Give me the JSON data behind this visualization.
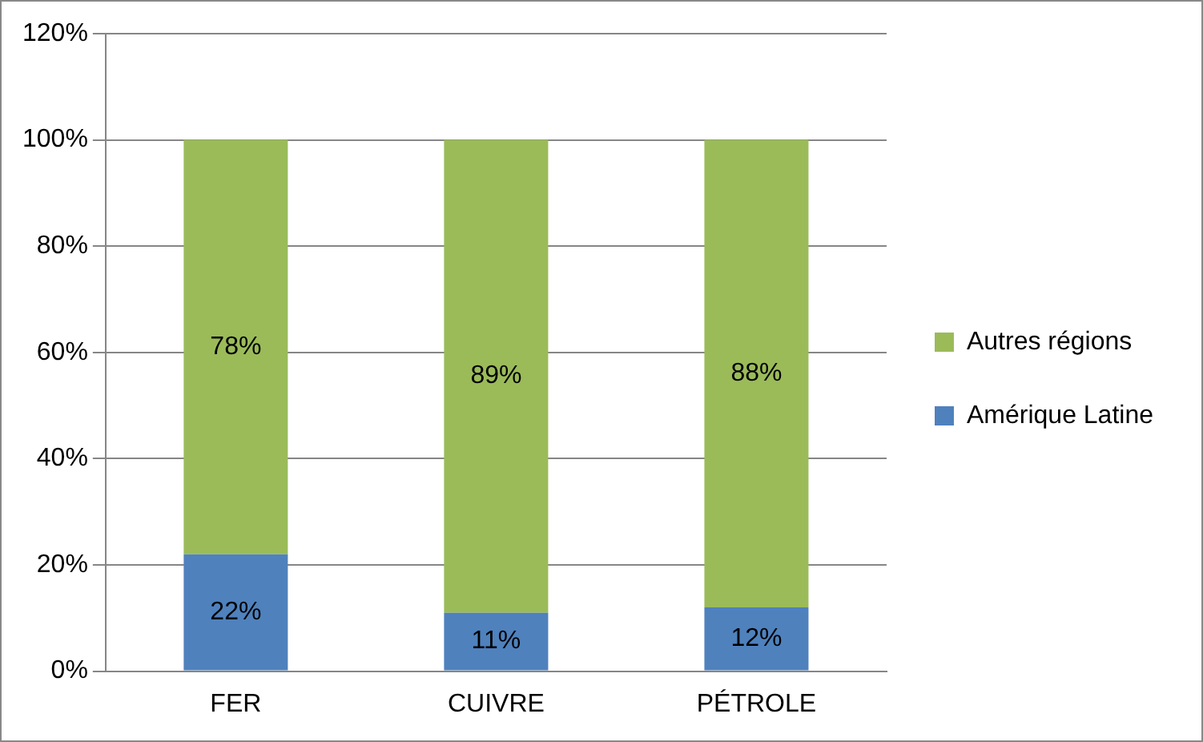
{
  "chart_data": {
    "type": "bar",
    "stacked": true,
    "categories": [
      "FER",
      "CUIVRE",
      "PÉTROLE"
    ],
    "series": [
      {
        "name": "Amérique Latine",
        "color": "#4f81bd",
        "values": [
          22,
          11,
          12
        ],
        "value_labels": [
          "22%",
          "11%",
          "12%"
        ]
      },
      {
        "name": "Autres régions",
        "color": "#9bbb59",
        "values": [
          78,
          89,
          88
        ],
        "value_labels": [
          "78%",
          "89%",
          "88%"
        ]
      }
    ],
    "ylim": [
      0,
      120
    ],
    "yticks": [
      {
        "value": 0,
        "label": "0%"
      },
      {
        "value": 20,
        "label": "20%"
      },
      {
        "value": 40,
        "label": "40%"
      },
      {
        "value": 60,
        "label": "60%"
      },
      {
        "value": 80,
        "label": "80%"
      },
      {
        "value": 100,
        "label": "100%"
      },
      {
        "value": 120,
        "label": "120%"
      }
    ],
    "grid": "y",
    "legend": "right"
  }
}
